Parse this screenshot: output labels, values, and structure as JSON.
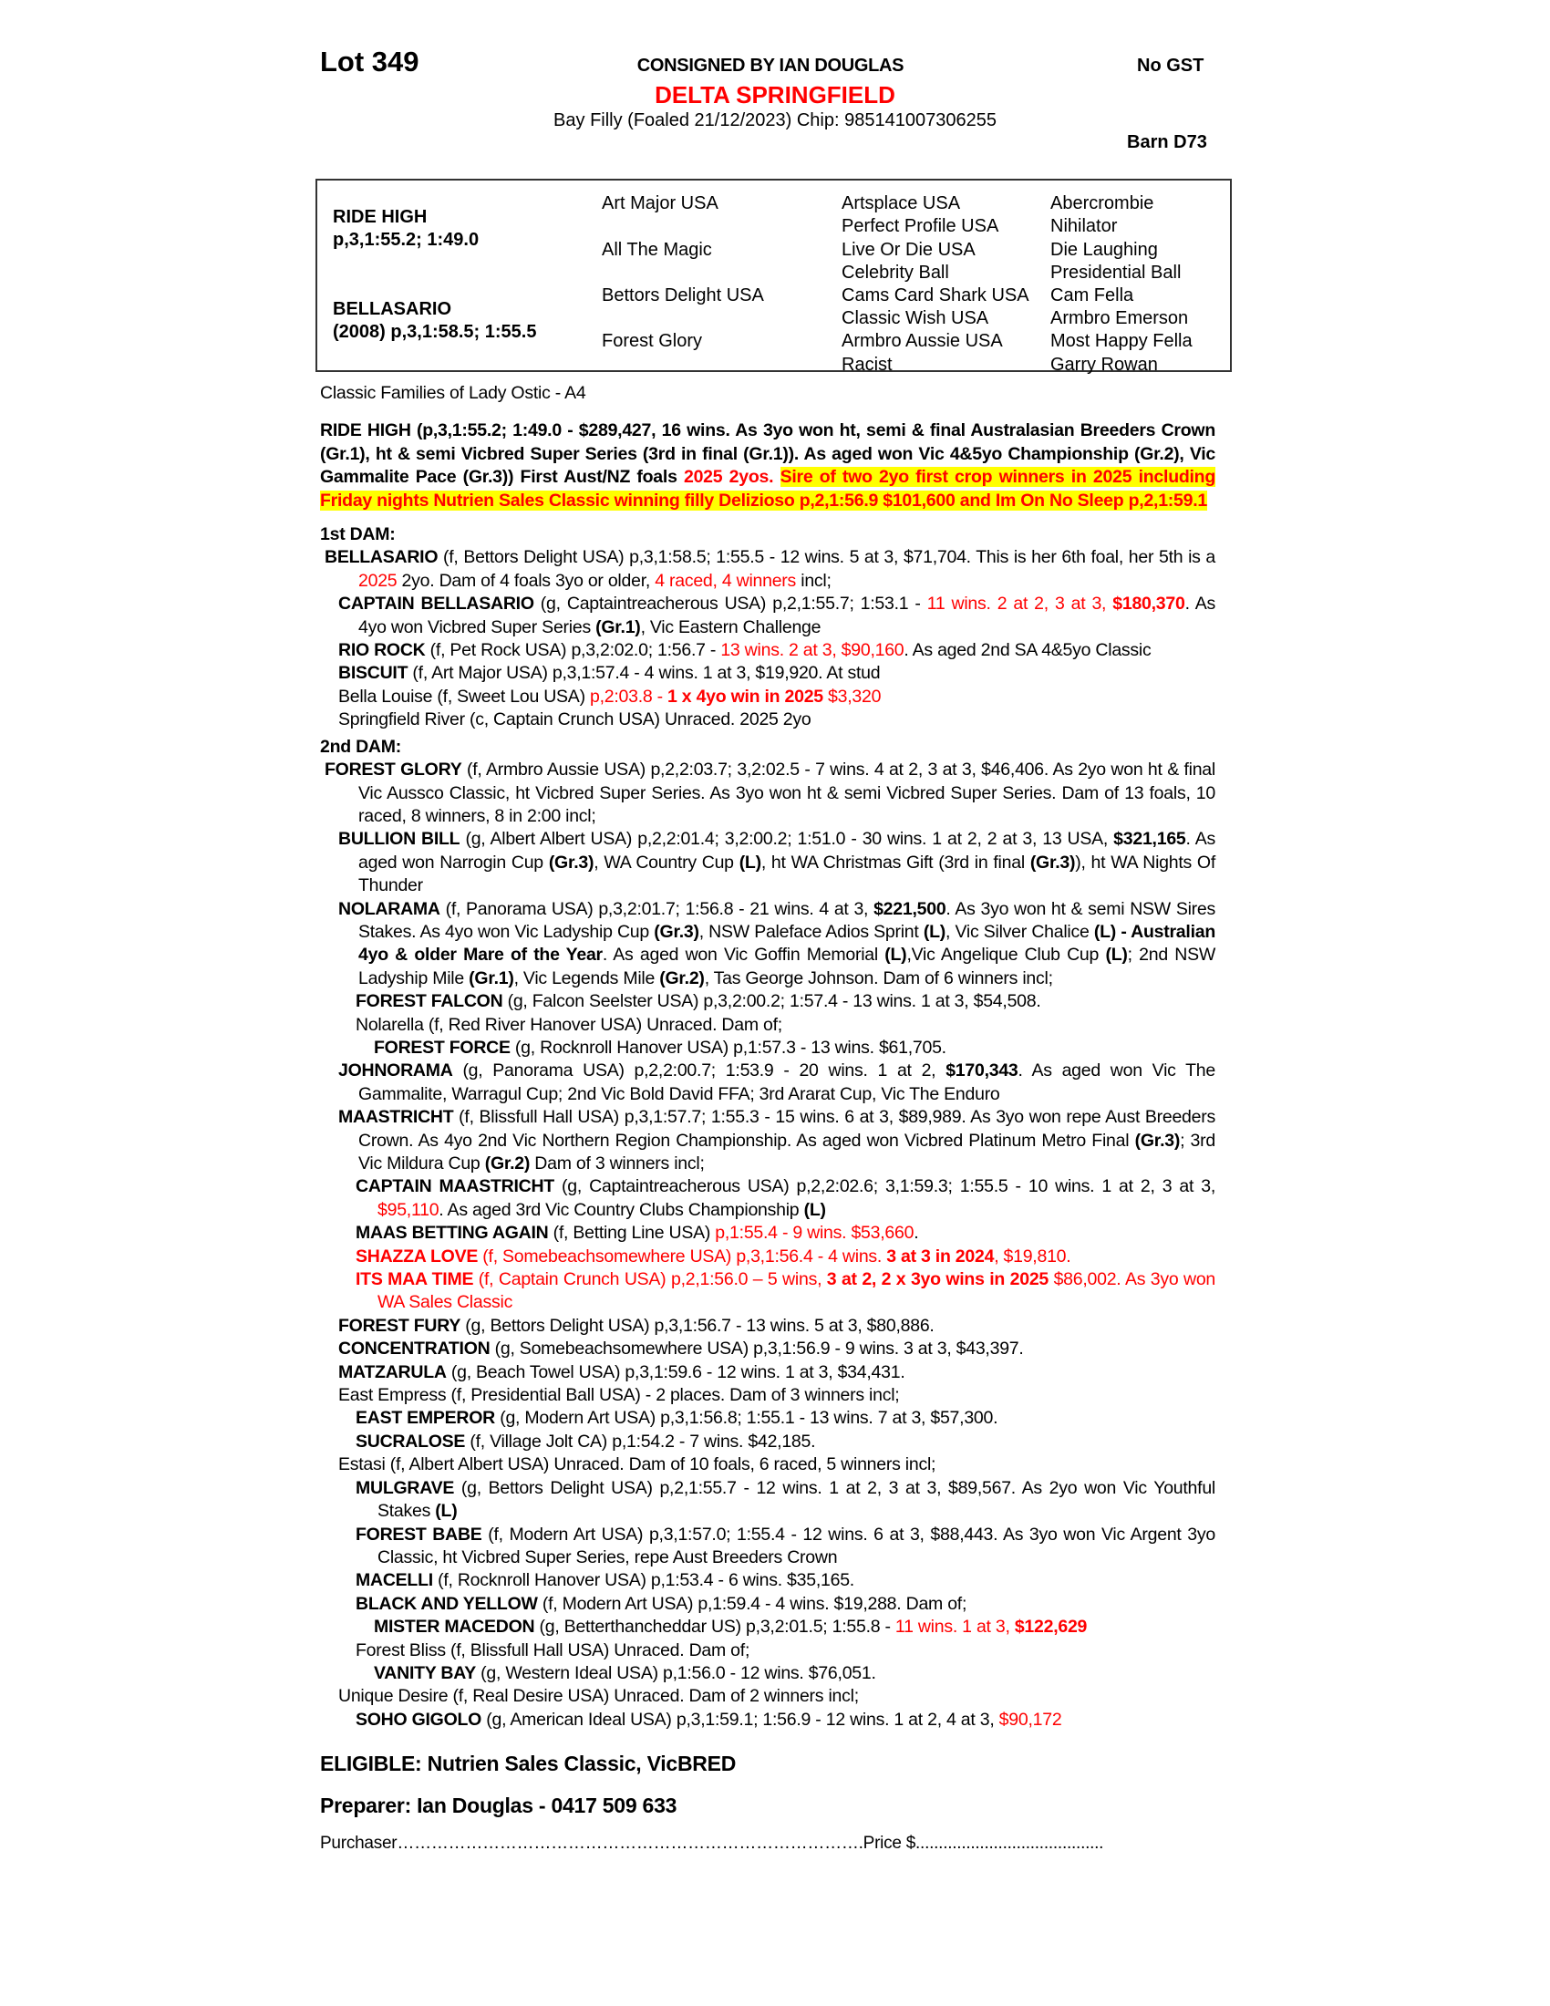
{
  "header": {
    "lot": "Lot 349",
    "consigned": "CONSIGNED BY IAN DOUGLAS",
    "gst": "No GST",
    "horse_name": "DELTA SPRINGFIELD",
    "description": "Bay Filly (Foaled 21/12/2023) Chip: 985141007306255",
    "barn": "Barn D73"
  },
  "pedigree": {
    "sire": "RIDE HIGH",
    "sire_record": "p,3,1:55.2; 1:49.0",
    "dam": "BELLASARIO",
    "dam_record": "(2008) p,3,1:58.5; 1:55.5",
    "gen2": [
      "Art Major USA",
      "All The Magic",
      "Bettors Delight USA",
      "Forest Glory"
    ],
    "gen3": [
      "Artsplace USA",
      "Perfect Profile USA",
      "Live Or Die USA",
      "Celebrity Ball",
      "Cams Card Shark USA",
      "Classic Wish USA",
      "Armbro Aussie USA",
      "Racist"
    ],
    "gen4": [
      "Abercrombie",
      "Nihilator",
      "Die Laughing",
      "Presidential Ball",
      "Cam Fella",
      "Armbro Emerson",
      "Most Happy Fella",
      "Garry Rowan"
    ]
  },
  "family": "Classic Families of Lady Ostic - A4",
  "colors": {
    "red": "#ff0000",
    "highlight": "#ffff00"
  },
  "sire_paragraph": [
    [
      "RIDE HIGH (p,3,1:55.2; 1:49.0 - $289,427, 16 wins. As 3yo won ht, semi & final Australasian Breeders Crown (Gr.1), ht & semi Vicbred Super Series (3rd in final (Gr.1)). As aged won Vic 4&5yo Championship (Gr.2), Vic Gammalite Pace (Gr.3)) First Aust/NZ foals ",
      ""
    ],
    [
      "2025 2yos.",
      "r"
    ],
    [
      " ",
      ""
    ],
    [
      "Sire of two 2yo first crop winners in 2025 including Friday nights Nutrien Sales Classic winning filly Delizioso p,2,1:56.9 $101,600 and Im On No Sleep p,2,1:59.1",
      "hy"
    ]
  ],
  "first_dam": {
    "heading": "1st DAM:",
    "entries": [
      {
        "level": 0,
        "runs": [
          [
            "BELLASARIO",
            "b"
          ],
          [
            " (f, Bettors Delight USA) p,3,1:58.5; 1:55.5 - 12 wins. 5 at 3, $71,704. This is her 6th foal, her 5th is a ",
            ""
          ],
          [
            "2025",
            "r"
          ],
          [
            " 2yo. Dam of 4 foals 3yo or older, ",
            ""
          ],
          [
            "4 raced, 4 winners",
            "r"
          ],
          [
            " incl;",
            ""
          ]
        ]
      },
      {
        "level": 1,
        "runs": [
          [
            "CAPTAIN BELLASARIO",
            "b"
          ],
          [
            " (g, Captaintreacherous USA) p,2,1:55.7; 1:53.1 - ",
            ""
          ],
          [
            "11 wins. 2 at 2, 3 at 3, ",
            "r"
          ],
          [
            "$180,370",
            "rb"
          ],
          [
            ". As 4yo won Vicbred Super Series ",
            ""
          ],
          [
            "(Gr.1)",
            "b"
          ],
          [
            ", Vic Eastern Challenge",
            ""
          ]
        ]
      },
      {
        "level": 1,
        "runs": [
          [
            "RIO ROCK",
            "b"
          ],
          [
            " (f, Pet Rock USA) p,3,2:02.0; 1:56.7 - ",
            ""
          ],
          [
            "13 wins. 2 at 3, $90,160",
            "r"
          ],
          [
            ". As aged 2nd SA 4&5yo Classic",
            ""
          ]
        ]
      },
      {
        "level": 1,
        "runs": [
          [
            "BISCUIT",
            "b"
          ],
          [
            " (f, Art Major USA) p,3,1:57.4 - 4 wins. 1 at 3, $19,920. At stud",
            ""
          ]
        ]
      },
      {
        "level": 1,
        "runs": [
          [
            "Bella Louise (f, Sweet Lou USA) ",
            ""
          ],
          [
            "p,2:03.8 - ",
            "r"
          ],
          [
            "1 x 4yo win in 2025",
            "rb"
          ],
          [
            " $3,320",
            "r"
          ]
        ]
      },
      {
        "level": 1,
        "runs": [
          [
            "Springfield River (c, Captain Crunch USA) Unraced. 2025 2yo",
            ""
          ]
        ]
      }
    ]
  },
  "second_dam": {
    "heading": "2nd DAM:",
    "entries": [
      {
        "level": 0,
        "runs": [
          [
            "FOREST GLORY",
            "b"
          ],
          [
            " (f, Armbro Aussie USA) p,2,2:03.7; 3,2:02.5 - 7 wins. 4 at 2, 3 at 3, $46,406. As 2yo won ht & final Vic Aussco Classic, ht Vicbred Super Series. As 3yo won ht & semi Vicbred Super Series. Dam of 13 foals, 10 raced, 8 winners, 8 in 2:00 incl;",
            ""
          ]
        ]
      },
      {
        "level": 1,
        "runs": [
          [
            "BULLION BILL",
            "b"
          ],
          [
            " (g, Albert Albert USA) p,2,2:01.4; 3,2:00.2; 1:51.0 - 30 wins. 1 at 2, 2 at 3, 13 USA, ",
            ""
          ],
          [
            "$321,165",
            "b"
          ],
          [
            ". As aged won Narrogin Cup ",
            ""
          ],
          [
            "(Gr.3)",
            "b"
          ],
          [
            ", WA Country Cup ",
            ""
          ],
          [
            "(L)",
            "b"
          ],
          [
            ", ht WA Christmas Gift (3rd in final ",
            ""
          ],
          [
            "(Gr.3)",
            "b"
          ],
          [
            "), ht WA Nights Of Thunder",
            ""
          ]
        ]
      },
      {
        "level": 1,
        "runs": [
          [
            "NOLARAMA",
            "b"
          ],
          [
            " (f, Panorama USA) p,3,2:01.7; 1:56.8 - 21 wins. 4 at 3, ",
            ""
          ],
          [
            "$221,500",
            "b"
          ],
          [
            ". As 3yo won ht & semi NSW Sires Stakes. As 4yo won Vic Ladyship Cup ",
            ""
          ],
          [
            "(Gr.3)",
            "b"
          ],
          [
            ", NSW Paleface Adios Sprint ",
            ""
          ],
          [
            "(L)",
            "b"
          ],
          [
            ", Vic Silver Chalice ",
            ""
          ],
          [
            "(L) - Australian 4yo & older Mare of the Year",
            "b"
          ],
          [
            ". As aged won Vic Goffin Memorial ",
            ""
          ],
          [
            "(L)",
            "b"
          ],
          [
            ",Vic Angelique Club Cup ",
            ""
          ],
          [
            "(L)",
            "b"
          ],
          [
            "; 2nd NSW Ladyship Mile ",
            ""
          ],
          [
            "(Gr.1)",
            "b"
          ],
          [
            ", Vic Legends Mile ",
            ""
          ],
          [
            "(Gr.2)",
            "b"
          ],
          [
            ", Tas George Johnson. Dam of 6 winners incl;",
            ""
          ]
        ]
      },
      {
        "level": 2,
        "runs": [
          [
            "FOREST FALCON",
            "b"
          ],
          [
            " (g, Falcon Seelster USA) p,3,2:00.2; 1:57.4 - 13 wins. 1 at 3, $54,508.",
            ""
          ]
        ]
      },
      {
        "level": 2,
        "runs": [
          [
            "Nolarella (f, Red River Hanover USA) Unraced. Dam of;",
            ""
          ]
        ]
      },
      {
        "level": 3,
        "runs": [
          [
            "FOREST FORCE",
            "b"
          ],
          [
            " (g, Rocknroll Hanover USA) p,1:57.3 - 13 wins. $61,705.",
            ""
          ]
        ]
      },
      {
        "level": 1,
        "runs": [
          [
            "JOHNORAMA",
            "b"
          ],
          [
            " (g, Panorama USA) p,2,2:00.7; 1:53.9 - 20 wins. 1 at 2, ",
            ""
          ],
          [
            "$170,343",
            "b"
          ],
          [
            ". As aged won Vic The Gammalite, Warragul Cup; 2nd Vic Bold David FFA; 3rd Ararat Cup, Vic The Enduro",
            ""
          ]
        ]
      },
      {
        "level": 1,
        "runs": [
          [
            "MAASTRICHT",
            "b"
          ],
          [
            " (f, Blissfull Hall USA) p,3,1:57.7; 1:55.3 - 15 wins. 6 at 3, $89,989. As 3yo won repe Aust Breeders Crown. As 4yo 2nd Vic Northern Region Championship. As aged won Vicbred Platinum Metro Final ",
            ""
          ],
          [
            "(Gr.3)",
            "b"
          ],
          [
            "; 3rd Vic Mildura Cup ",
            ""
          ],
          [
            "(Gr.2)",
            "b"
          ],
          [
            " Dam of 3 winners incl;",
            ""
          ]
        ]
      },
      {
        "level": 2,
        "runs": [
          [
            "CAPTAIN MAASTRICHT",
            "b"
          ],
          [
            " (g, Captaintreacherous USA) p,2,2:02.6; 3,1:59.3; 1:55.5 - 10 wins. 1 at 2, 3 at 3, ",
            ""
          ],
          [
            "$95,110",
            "r"
          ],
          [
            ". As aged 3rd Vic Country Clubs Championship ",
            ""
          ],
          [
            "(L)",
            "b"
          ]
        ]
      },
      {
        "level": 2,
        "runs": [
          [
            "MAAS BETTING AGAIN",
            "b"
          ],
          [
            " (f, Betting Line USA) ",
            ""
          ],
          [
            "p,1:55.4 - 9 wins. $53,660",
            "r"
          ],
          [
            ".",
            ""
          ]
        ]
      },
      {
        "level": 2,
        "runs": [
          [
            "SHAZZA LOVE",
            "rb"
          ],
          [
            " (f, Somebeachsomewhere USA) p,3,1:56.4 - 4 wins. ",
            "r"
          ],
          [
            "3 at 3 in 2024",
            "rb"
          ],
          [
            ", $19,810.",
            "r"
          ]
        ]
      },
      {
        "level": 2,
        "runs": [
          [
            "ITS MAA TIME",
            "rb"
          ],
          [
            " (f, Captain Crunch USA) p,2,1:56.0 – 5 wins, ",
            "r"
          ],
          [
            "3 at 2, 2 x 3yo wins in 2025",
            "rb"
          ],
          [
            " $86,002. As 3yo won WA Sales Classic",
            "r"
          ]
        ]
      },
      {
        "level": 1,
        "runs": [
          [
            "FOREST FURY",
            "b"
          ],
          [
            " (g, Bettors Delight USA) p,3,1:56.7 - 13 wins. 5 at 3, $80,886.",
            ""
          ]
        ]
      },
      {
        "level": 1,
        "runs": [
          [
            "CONCENTRATION",
            "b"
          ],
          [
            " (g, Somebeachsomewhere USA) p,3,1:56.9 - 9 wins. 3 at 3, $43,397.",
            ""
          ]
        ]
      },
      {
        "level": 1,
        "runs": [
          [
            "MATZARULA",
            "b"
          ],
          [
            " (g, Beach Towel USA) p,3,1:59.6 - 12 wins. 1 at 3, $34,431.",
            ""
          ]
        ]
      },
      {
        "level": 1,
        "runs": [
          [
            "East Empress (f, Presidential Ball USA) - 2 places. Dam of 3 winners incl;",
            ""
          ]
        ]
      },
      {
        "level": 2,
        "runs": [
          [
            "EAST EMPEROR",
            "b"
          ],
          [
            " (g, Modern Art USA) p,3,1:56.8; 1:55.1 - 13 wins. 7 at 3, $57,300.",
            ""
          ]
        ]
      },
      {
        "level": 2,
        "runs": [
          [
            "SUCRALOSE",
            "b"
          ],
          [
            " (f, Village Jolt CA) p,1:54.2 - 7 wins. $42,185.",
            ""
          ]
        ]
      },
      {
        "level": 1,
        "runs": [
          [
            "Estasi (f, Albert Albert USA) Unraced. Dam of 10 foals, 6 raced, 5 winners incl;",
            ""
          ]
        ]
      },
      {
        "level": 2,
        "runs": [
          [
            "MULGRAVE",
            "b"
          ],
          [
            " (g, Bettors Delight USA) p,2,1:55.7 - 12 wins. 1 at 2, 3 at 3, $89,567. As 2yo won Vic Youthful Stakes ",
            ""
          ],
          [
            "(L)",
            "b"
          ]
        ]
      },
      {
        "level": 2,
        "runs": [
          [
            "FOREST BABE",
            "b"
          ],
          [
            " (f, Modern Art USA) p,3,1:57.0; 1:55.4 - 12 wins. 6 at 3, $88,443. As 3yo won Vic Argent 3yo Classic, ht Vicbred Super Series, repe Aust Breeders Crown",
            ""
          ]
        ]
      },
      {
        "level": 2,
        "runs": [
          [
            "MACELLI",
            "b"
          ],
          [
            " (f, Rocknroll Hanover USA) p,1:53.4 - 6 wins. $35,165.",
            ""
          ]
        ]
      },
      {
        "level": 2,
        "runs": [
          [
            "BLACK AND YELLOW",
            "b"
          ],
          [
            " (f, Modern Art USA) p,1:59.4 - 4 wins. $19,288. Dam of;",
            ""
          ]
        ]
      },
      {
        "level": 3,
        "runs": [
          [
            "MISTER MACEDON",
            "b"
          ],
          [
            " (g, Betterthancheddar US) p,3,2:01.5; 1:55.8 - ",
            ""
          ],
          [
            "11 wins. 1 at 3, ",
            "r"
          ],
          [
            "$122,629",
            "rb"
          ]
        ]
      },
      {
        "level": 2,
        "runs": [
          [
            "Forest Bliss (f, Blissfull Hall USA) Unraced. Dam of;",
            ""
          ]
        ]
      },
      {
        "level": 3,
        "runs": [
          [
            "VANITY BAY",
            "b"
          ],
          [
            " (g, Western Ideal USA) p,1:56.0 - 12 wins. $76,051.",
            ""
          ]
        ]
      },
      {
        "level": 1,
        "runs": [
          [
            "Unique Desire (f, Real Desire USA) Unraced. Dam of 2 winners incl;",
            ""
          ]
        ]
      },
      {
        "level": 2,
        "runs": [
          [
            "SOHO GIGOLO",
            "b"
          ],
          [
            " (g, American Ideal USA) p,3,1:59.1; 1:56.9 - 12 wins. 1 at 2, 4 at 3, ",
            ""
          ],
          [
            "$90,172",
            "r"
          ]
        ]
      }
    ]
  },
  "footer": {
    "eligible": "ELIGIBLE: Nutrien Sales Classic, VicBRED",
    "preparer": "Preparer: Ian Douglas - 0417 509 633",
    "purchaser_label": "Purchaser",
    "purchaser_dots": "……………………………………………………………………….",
    "price_label": "Price $",
    "price_dots": "........................................."
  }
}
